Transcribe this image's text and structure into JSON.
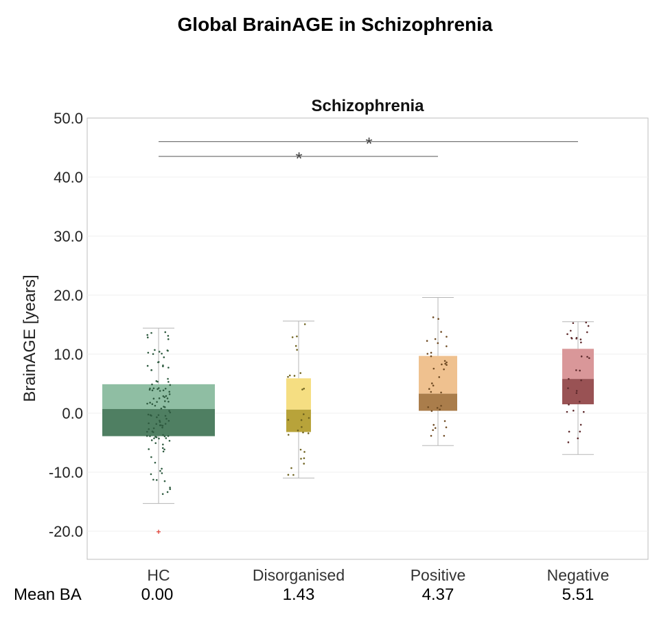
{
  "title": "Global BrainAGE in Schizophrenia",
  "chart_data": {
    "type": "box",
    "title": "Schizophrenia",
    "xlabel": "",
    "ylabel": "BrainAGE [years]",
    "ylim": [
      -25,
      50
    ],
    "yticks": [
      "50.0",
      "40.0",
      "30.0",
      "20.0",
      "10.0",
      "0.0",
      "-10.0",
      "-20.0"
    ],
    "ytick_values": [
      50,
      40,
      30,
      20,
      10,
      0,
      -10,
      -20
    ],
    "grid": true,
    "categories": [
      "HC",
      "Disorganised",
      "Positive",
      "Negative"
    ],
    "series": [
      {
        "category": "HC",
        "min": -15.3,
        "q1": -3.9,
        "median": 0.7,
        "q3": 4.9,
        "max": 14.4,
        "outliers": [
          -20.1
        ],
        "light_color": "#8fbea3",
        "dark_color": "#4f7f62",
        "dot_color": "#2f5b40"
      },
      {
        "category": "Disorganised",
        "min": -11.0,
        "q1": -3.2,
        "median": 0.6,
        "q3": 5.9,
        "max": 15.6,
        "outliers": [],
        "light_color": "#f5de82",
        "dark_color": "#b8a33a",
        "dot_color": "#6f6320"
      },
      {
        "category": "Positive",
        "min": -5.5,
        "q1": 0.4,
        "median": 3.3,
        "q3": 9.7,
        "max": 19.6,
        "outliers": [],
        "light_color": "#efc18f",
        "dark_color": "#aa7d4b",
        "dot_color": "#6e4a22"
      },
      {
        "category": "Negative",
        "min": -7.0,
        "q1": 1.5,
        "median": 5.8,
        "q3": 10.9,
        "max": 15.5,
        "outliers": [],
        "light_color": "#d99799",
        "dark_color": "#995254",
        "dot_color": "#5e2a2c"
      }
    ],
    "significance": [
      {
        "from": "HC",
        "to": "Negative",
        "y": 46.0,
        "label": "*"
      },
      {
        "from": "HC",
        "to": "Positive",
        "y": 43.5,
        "label": "*"
      }
    ],
    "mean_label": "Mean BA",
    "mean_values": [
      "0.00",
      "1.43",
      "4.37",
      "5.51"
    ]
  }
}
